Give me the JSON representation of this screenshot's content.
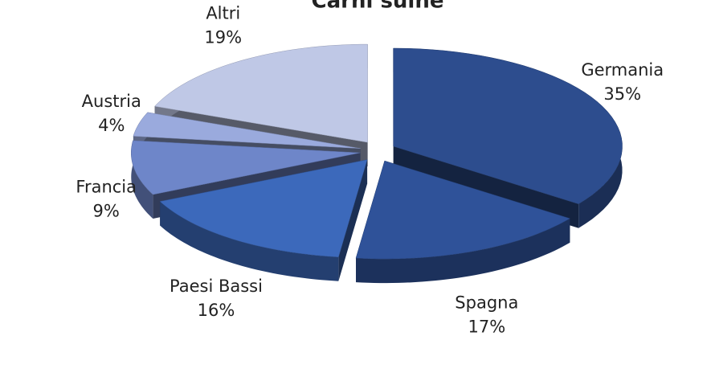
{
  "chart_data": {
    "type": "pie",
    "title": "Carni suine",
    "categories": [
      "Germania",
      "Spagna",
      "Paesi Bassi",
      "Francia",
      "Austria",
      "Altri"
    ],
    "values": [
      35,
      17,
      16,
      9,
      4,
      19
    ],
    "value_labels": [
      "35%",
      "17%",
      "16%",
      "9%",
      "4%",
      "19%"
    ],
    "colors": [
      "#2d4d8e",
      "#2f5299",
      "#3c69bb",
      "#6e86c9",
      "#9aaadd",
      "#bfc8e6"
    ]
  }
}
